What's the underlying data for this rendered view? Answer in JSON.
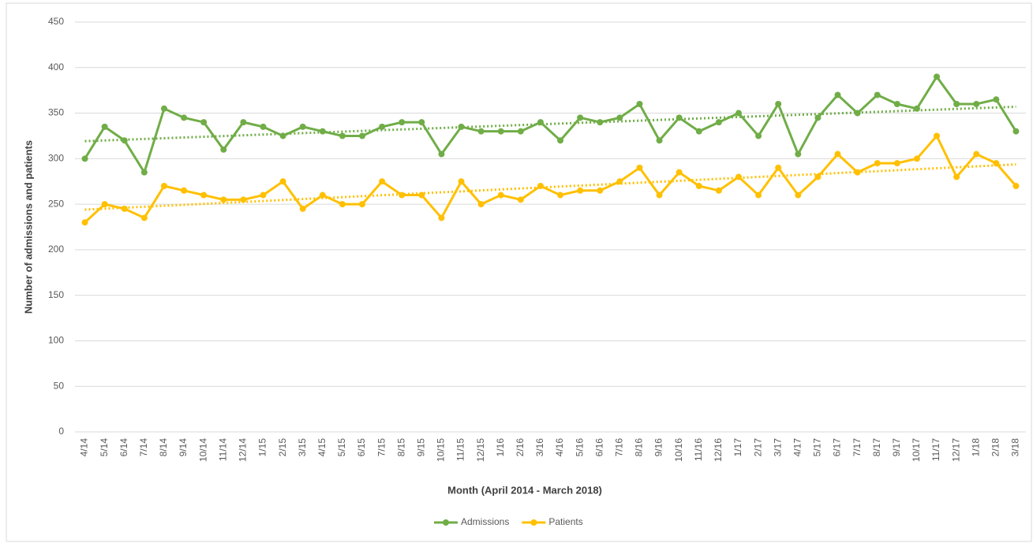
{
  "chart_data": {
    "type": "line",
    "x_label": "Month (April  2014 - March 2018)",
    "y_label": "Number of admissions and patients",
    "categories": [
      "4/14",
      "5/14",
      "6/14",
      "7/14",
      "8/14",
      "9/14",
      "10/14",
      "11/14",
      "12/14",
      "1/15",
      "2/15",
      "3/15",
      "4/15",
      "5/15",
      "6/15",
      "7/15",
      "8/15",
      "9/15",
      "10/15",
      "11/15",
      "12/15",
      "1/16",
      "2/16",
      "3/16",
      "4/16",
      "5/16",
      "6/16",
      "7/16",
      "8/16",
      "9/16",
      "10/16",
      "11/16",
      "12/16",
      "1/17",
      "2/17",
      "3/17",
      "4/17",
      "5/17",
      "6/17",
      "7/17",
      "8/17",
      "9/17",
      "10/17",
      "11/17",
      "12/17",
      "1/18",
      "2/18",
      "3/18"
    ],
    "series": [
      {
        "name": "Admissions",
        "color": "#70ad47",
        "values": [
          300,
          335,
          320,
          285,
          355,
          345,
          340,
          310,
          340,
          335,
          325,
          335,
          330,
          325,
          325,
          335,
          340,
          340,
          305,
          335,
          330,
          330,
          330,
          340,
          320,
          345,
          340,
          345,
          360,
          320,
          345,
          330,
          340,
          350,
          325,
          360,
          305,
          345,
          370,
          350,
          370,
          360,
          355,
          390,
          360,
          360,
          365,
          330
        ]
      },
      {
        "name": "Patients",
        "color": "#ffc000",
        "values": [
          230,
          250,
          245,
          235,
          270,
          265,
          260,
          255,
          255,
          260,
          275,
          245,
          260,
          250,
          250,
          275,
          260,
          260,
          235,
          275,
          250,
          260,
          255,
          270,
          260,
          265,
          265,
          275,
          290,
          260,
          285,
          270,
          265,
          280,
          260,
          290,
          260,
          280,
          305,
          285,
          295,
          295,
          300,
          325,
          280,
          305,
          295,
          270
        ]
      }
    ],
    "ylim": [
      0,
      450
    ],
    "yticks": [
      0,
      50,
      100,
      150,
      200,
      250,
      300,
      350,
      400,
      450
    ],
    "grid": true,
    "trendline": true,
    "legend": "bottom"
  }
}
